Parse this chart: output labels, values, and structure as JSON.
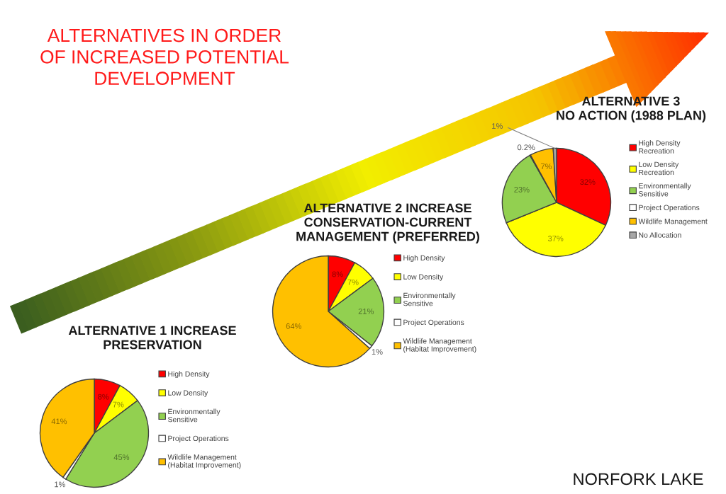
{
  "chart_data": [
    {
      "type": "pie",
      "title": "ALTERNATIVE 3\nNO ACTION (1988 PLAN)",
      "categories": [
        "High Density\nRecreation",
        "Low Density\nRecreation",
        "Environmentally\nSensitive",
        "Project Operations",
        "Wildlife Management",
        "No Allocation"
      ],
      "values": [
        32,
        37,
        23,
        0.2,
        7,
        1
      ],
      "value_labels": [
        "32%",
        "37%",
        "23%",
        "0.2%",
        "7%",
        "1%"
      ],
      "colors": [
        "#ff0000",
        "#ffff00",
        "#92d050",
        "#ffffff",
        "#ffc000",
        "#a6a6a6"
      ],
      "legend": "right",
      "annotations": [
        "ALTERNATIVES IN ORDER\nOF INCREASED POTENTIAL\nDEVELOPMENT"
      ]
    },
    {
      "type": "pie",
      "title": "ALTERNATIVE 2 INCREASE\nCONSERVATION-CURRENT\nMANAGEMENT (PREFERRED)",
      "categories": [
        "High Density",
        "Low Density",
        "Environmentally\nSensitive",
        "Project Operations",
        "Wildlife Management\n(Habitat Improvement)"
      ],
      "values": [
        8,
        7,
        21,
        1,
        64
      ],
      "value_labels": [
        "8%",
        "7%",
        "21%",
        "1%",
        "64%"
      ],
      "colors": [
        "#ff0000",
        "#ffff00",
        "#92d050",
        "#ffffff",
        "#ffc000"
      ],
      "legend": "right"
    },
    {
      "type": "pie",
      "title": "ALTERNATIVE 1 INCREASE\nPRESERVATION",
      "categories": [
        "High Density",
        "Low Density",
        "Environmentally\nSensitive",
        "Project Operations",
        "Wildlife Management\n(Habitat Improvement)"
      ],
      "values": [
        8,
        7,
        45,
        1,
        41
      ],
      "value_labels": [
        "8%",
        "7%",
        "45%",
        "1%",
        "41%"
      ],
      "colors": [
        "#ff0000",
        "#ffff00",
        "#92d050",
        "#ffffff",
        "#ffc000"
      ],
      "legend": "right",
      "annotations": [
        "NORFORK LAKE"
      ]
    }
  ]
}
